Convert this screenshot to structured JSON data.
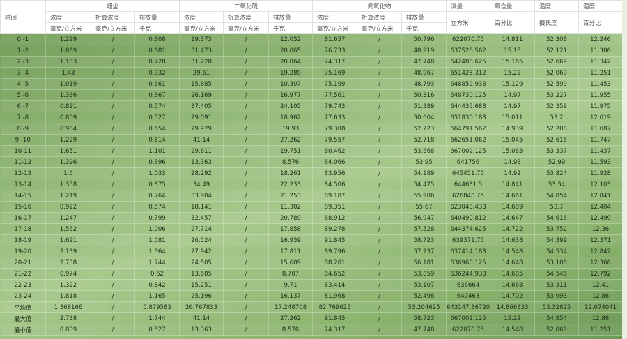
{
  "table": {
    "header": {
      "time": "时间",
      "groups": [
        "烟尘",
        "二氧化硫",
        "氮氧化物"
      ],
      "single": [
        "流量",
        "氧含量",
        "温度",
        "湿度"
      ],
      "sub": [
        "浓度",
        "折算浓度",
        "排放量",
        "浓度",
        "折算浓度",
        "排放量",
        "浓度",
        "折算浓度",
        "排放量"
      ],
      "units": [
        "毫克/立方米",
        "毫克/立方米",
        "千克",
        "毫克/立方米",
        "毫克/立方米",
        "千克",
        "毫克/立方米",
        "毫克/立方米",
        "千克",
        "立方米",
        "百分比",
        "摄氏度",
        "百分比"
      ]
    },
    "rows": [
      [
        "0 -1",
        1.299,
        "/",
        0.808,
        19.373,
        "/",
        12.052,
        81.657,
        "/",
        50.796,
        622070.75,
        14.811,
        52.308,
        12.246
      ],
      [
        "1 -2",
        1.069,
        "/",
        0.681,
        31.473,
        "/",
        20.065,
        76.733,
        "/",
        48.919,
        637528.562,
        15.15,
        52.121,
        11.306
      ],
      [
        "2 -3",
        1.133,
        "/",
        0.728,
        31.228,
        "/",
        20.064,
        74.317,
        "/",
        47.748,
        642488.625,
        15.165,
        52.669,
        11.342
      ],
      [
        "3 -4",
        1.43,
        "/",
        0.932,
        29.61,
        "/",
        19.289,
        75.169,
        "/",
        48.967,
        651428.312,
        15.22,
        52.069,
        11.251
      ],
      [
        "4 -5",
        1.019,
        "/",
        0.661,
        15.885,
        "/",
        10.307,
        75.199,
        "/",
        48.793,
        648859.938,
        15.129,
        52.599,
        11.453
      ],
      [
        "5 -6",
        1.336,
        "/",
        0.867,
        26.169,
        "/",
        16.977,
        77.561,
        "/",
        50.316,
        648730.125,
        14.97,
        53.227,
        11.955
      ],
      [
        "6 -7",
        0.891,
        "/",
        0.574,
        37.405,
        "/",
        24.105,
        79.743,
        "/",
        51.389,
        644435.688,
        14.97,
        52.359,
        11.975
      ],
      [
        "7 -8",
        0.809,
        "/",
        0.527,
        29.091,
        "/",
        18.962,
        77.633,
        "/",
        50.604,
        651830.188,
        15.011,
        53.2,
        12.019
      ],
      [
        "8 -9",
        0.984,
        "/",
        0.654,
        29.979,
        "/",
        19.93,
        79.308,
        "/",
        52.723,
        664791.562,
        14.939,
        52.208,
        11.687
      ],
      [
        "9 -10",
        1.229,
        "/",
        0.814,
        41.14,
        "/",
        27.262,
        79.557,
        "/",
        52.718,
        662651.062,
        15.045,
        52.616,
        11.747
      ],
      [
        "10-11",
        1.651,
        "/",
        1.101,
        29.611,
        "/",
        19.751,
        80.462,
        "/",
        53.668,
        667002.125,
        15.083,
        53.337,
        11.437
      ],
      [
        "11-12",
        1.396,
        "/",
        0.896,
        13.363,
        "/",
        8.576,
        84.066,
        "/",
        53.95,
        641756,
        14.93,
        52.99,
        11.593
      ],
      [
        "12-13",
        1.6,
        "/",
        1.033,
        28.292,
        "/",
        18.261,
        83.956,
        "/",
        54.189,
        645451.75,
        14.92,
        53.824,
        11.928
      ],
      [
        "13-14",
        1.358,
        "/",
        0.875,
        34.49,
        "/",
        22.233,
        84.506,
        "/",
        54.475,
        644631.5,
        14.841,
        53.54,
        12.103
      ],
      [
        "14-15",
        1.219,
        "/",
        0.764,
        33.904,
        "/",
        21.253,
        89.187,
        "/",
        55.906,
        626848.75,
        14.661,
        54.854,
        12.841
      ],
      [
        "15-16",
        0.922,
        "/",
        0.574,
        18.141,
        "/",
        11.302,
        89.351,
        "/",
        55.67,
        623048.438,
        14.689,
        53.7,
        12.404
      ],
      [
        "16-17",
        1.247,
        "/",
        0.799,
        32.457,
        "/",
        20.789,
        88.912,
        "/",
        56.947,
        640490.812,
        14.647,
        54.616,
        12.499
      ],
      [
        "17-18",
        1.562,
        "/",
        1.006,
        27.714,
        "/",
        17.858,
        89.278,
        "/",
        57.528,
        644374.625,
        14.722,
        53.752,
        12.36
      ],
      [
        "18-19",
        1.691,
        "/",
        1.081,
        26.524,
        "/",
        16.959,
        91.845,
        "/",
        58.723,
        639371.75,
        14.638,
        54.399,
        12.371
      ],
      [
        "19-20",
        2.139,
        "/",
        1.364,
        27.942,
        "/",
        17.811,
        89.796,
        "/",
        57.237,
        637414.188,
        14.548,
        54.534,
        12.842
      ],
      [
        "20-21",
        2.738,
        "/",
        1.744,
        24.505,
        "/",
        15.609,
        88.201,
        "/",
        56.181,
        636960.125,
        14.648,
        53.106,
        12.366
      ],
      [
        "21-22",
        0.974,
        "/",
        0.62,
        13.685,
        "/",
        8.707,
        84.652,
        "/",
        53.859,
        636244.938,
        14.685,
        54.546,
        12.792
      ],
      [
        "22-23",
        1.322,
        "/",
        0.842,
        15.251,
        "/",
        9.71,
        83.414,
        "/",
        53.107,
        636664,
        14.668,
        53.311,
        12.41
      ],
      [
        "23-24",
        1.818,
        "/",
        1.165,
        25.196,
        "/",
        16.137,
        81.968,
        "/",
        52.498,
        640463,
        14.702,
        53.993,
        12.86
      ],
      [
        "平均值",
        1.368166,
        "/",
        0.879583,
        26.767833,
        "/",
        17.248708,
        82.769625,
        "/",
        53.204625,
        643147.367208,
        14.866333,
        53.32825,
        12.074041
      ],
      [
        "最大值",
        2.738,
        "/",
        1.744,
        41.14,
        "/",
        27.262,
        91.845,
        "/",
        58.723,
        667002.125,
        15.22,
        54.854,
        12.86
      ],
      [
        "最小值",
        0.809,
        "/",
        0.527,
        13.363,
        "/",
        8.576,
        74.317,
        "/",
        47.748,
        622070.75,
        14.548,
        52.069,
        11.251
      ]
    ]
  }
}
